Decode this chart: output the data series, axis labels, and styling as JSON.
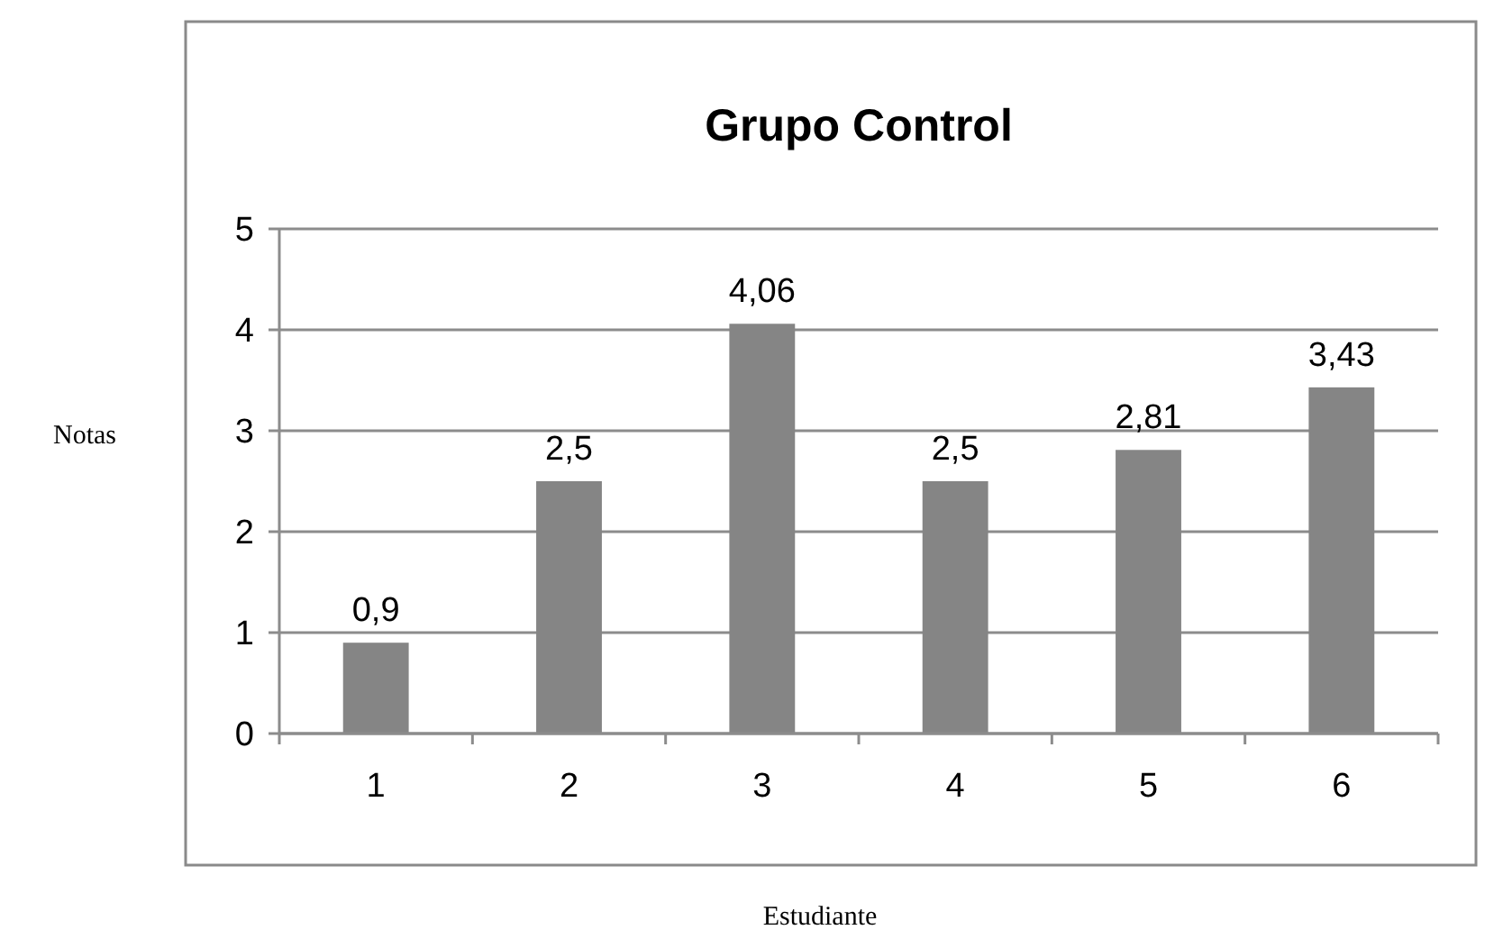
{
  "chart_data": {
    "type": "bar",
    "title": "Grupo Control",
    "xlabel": "Estudiante",
    "ylabel": "Notas",
    "categories": [
      "1",
      "2",
      "3",
      "4",
      "5",
      "6"
    ],
    "values": [
      0.9,
      2.5,
      4.06,
      2.5,
      2.81,
      3.43
    ],
    "value_labels": [
      "0,9",
      "2,5",
      "4,06",
      "2,5",
      "2,81",
      "3,43"
    ],
    "color": "#858585",
    "ylim": [
      0,
      5
    ],
    "yticks": [
      0,
      1,
      2,
      3,
      4,
      5
    ],
    "grid": "y"
  }
}
